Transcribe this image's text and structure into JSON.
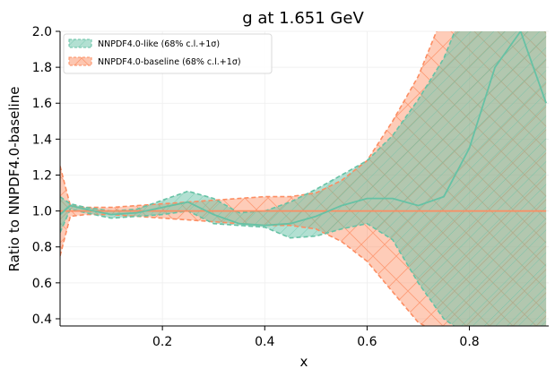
{
  "chart_data": {
    "type": "line",
    "title": "g at 1.651 GeV",
    "xlabel": "x",
    "ylabel": "Ratio to NNPDF4.0-baseline",
    "xlim": [
      0.0,
      0.955
    ],
    "ylim": [
      0.36,
      2.0
    ],
    "x_ticks": [
      {
        "value": 0.2,
        "label": "0.2"
      },
      {
        "value": 0.4,
        "label": "0.4"
      },
      {
        "value": 0.6,
        "label": "0.6"
      },
      {
        "value": 0.8,
        "label": "0.8"
      }
    ],
    "y_ticks": [
      {
        "value": 0.4,
        "label": "0.4"
      },
      {
        "value": 0.6,
        "label": "0.6"
      },
      {
        "value": 0.8,
        "label": "0.8"
      },
      {
        "value": 1.0,
        "label": "1.0"
      },
      {
        "value": 1.2,
        "label": "1.2"
      },
      {
        "value": 1.4,
        "label": "1.4"
      },
      {
        "value": 1.6,
        "label": "1.6"
      },
      {
        "value": 1.8,
        "label": "1.8"
      },
      {
        "value": 2.0,
        "label": "2.0"
      }
    ],
    "grid": true,
    "legend_position": "top-left",
    "series": [
      {
        "name": "NNPDF4.0-like (68% c.l.+1σ)",
        "color": "#66c2a5",
        "fill": "#66c2a5",
        "x": [
          0.0,
          0.02,
          0.05,
          0.1,
          0.15,
          0.2,
          0.25,
          0.3,
          0.35,
          0.4,
          0.45,
          0.5,
          0.55,
          0.6,
          0.65,
          0.7,
          0.75,
          0.8,
          0.85,
          0.9,
          0.95
        ],
        "central": [
          0.98,
          1.03,
          1.01,
          0.98,
          0.99,
          1.02,
          1.05,
          0.98,
          0.93,
          0.92,
          0.93,
          0.97,
          1.03,
          1.07,
          1.07,
          1.03,
          1.08,
          1.35,
          1.8,
          2.0,
          1.6
        ],
        "upper": [
          1.08,
          1.04,
          1.02,
          1.0,
          1.01,
          1.06,
          1.11,
          1.07,
          0.99,
          1.0,
          1.05,
          1.12,
          1.2,
          1.28,
          1.42,
          1.62,
          1.85,
          2.2,
          2.3,
          2.4,
          2.4
        ],
        "lower": [
          0.88,
          1.01,
          0.99,
          0.96,
          0.97,
          0.98,
          1.0,
          0.93,
          0.92,
          0.91,
          0.85,
          0.86,
          0.9,
          0.93,
          0.84,
          0.6,
          0.4,
          0.3,
          0.3,
          0.3,
          0.3
        ]
      },
      {
        "name": "NNPDF4.0-baseline (68% c.l.+1σ)",
        "color": "#fc8d62",
        "fill": "#fc8d62",
        "x": [
          0.0,
          0.02,
          0.05,
          0.1,
          0.15,
          0.2,
          0.25,
          0.3,
          0.35,
          0.4,
          0.45,
          0.5,
          0.55,
          0.6,
          0.65,
          0.7,
          0.75,
          0.8,
          0.85,
          0.9,
          0.95
        ],
        "central": [
          1.0,
          1.0,
          1.0,
          1.0,
          1.0,
          1.0,
          1.0,
          1.0,
          1.0,
          1.0,
          1.0,
          1.0,
          1.0,
          1.0,
          1.0,
          1.0,
          1.0,
          1.0,
          1.0,
          1.0,
          1.0
        ],
        "upper": [
          1.25,
          1.03,
          1.02,
          1.02,
          1.03,
          1.04,
          1.05,
          1.06,
          1.07,
          1.08,
          1.08,
          1.1,
          1.17,
          1.28,
          1.5,
          1.75,
          2.1,
          2.3,
          2.4,
          2.4,
          2.4
        ],
        "lower": [
          0.75,
          0.97,
          0.98,
          0.98,
          0.97,
          0.96,
          0.95,
          0.94,
          0.93,
          0.92,
          0.92,
          0.9,
          0.83,
          0.72,
          0.55,
          0.38,
          0.3,
          0.3,
          0.3,
          0.3,
          0.3
        ]
      }
    ]
  }
}
